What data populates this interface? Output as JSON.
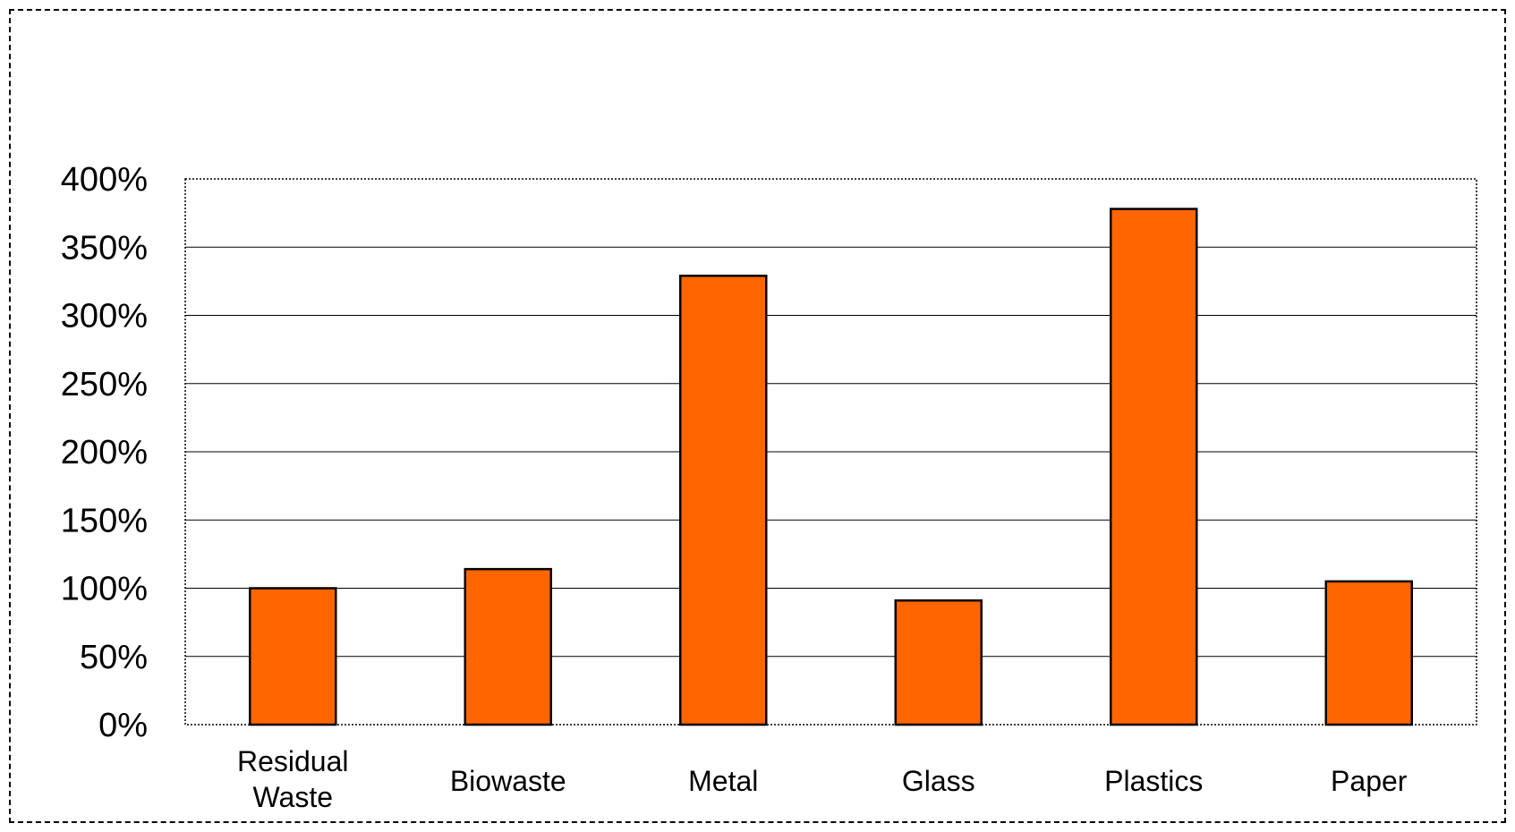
{
  "chart_data": {
    "type": "bar",
    "categories": [
      [
        "Residual",
        "Waste"
      ],
      [
        "Biowaste"
      ],
      [
        "Metal"
      ],
      [
        "Glass"
      ],
      [
        "Plastics"
      ],
      [
        "Paper"
      ]
    ],
    "values": [
      100,
      114,
      329,
      91,
      378,
      105
    ],
    "unit": "%",
    "ylim": [
      0,
      400
    ],
    "yticks": [
      0,
      50,
      100,
      150,
      200,
      250,
      300,
      350,
      400
    ],
    "ytick_labels": [
      "0%",
      "50%",
      "100%",
      "150%",
      "200%",
      "250%",
      "300%",
      "350%",
      "400%"
    ],
    "title": "",
    "xlabel": "",
    "ylabel": "",
    "grid": true,
    "legend": "none",
    "colors": {
      "bar_fill": "#FF6600",
      "bar_stroke": "#000000",
      "gridline": "#000000",
      "plot_border": "#000000"
    }
  }
}
